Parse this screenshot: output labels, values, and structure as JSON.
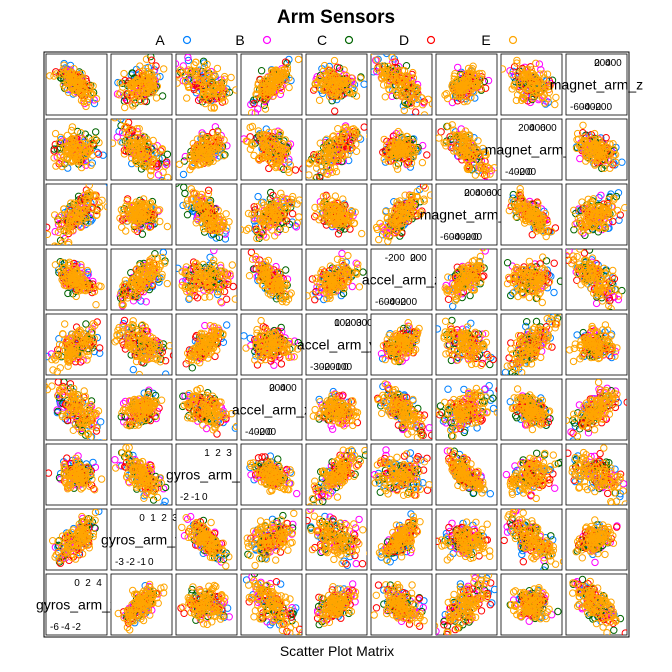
{
  "chart_data": {
    "type": "scatter",
    "subtype": "scatterplot-matrix",
    "title": "Arm Sensors",
    "xlabel": "Scatter Plot Matrix",
    "legend": {
      "placement": "top",
      "entries": [
        {
          "name": "A",
          "color": "#0080ff"
        },
        {
          "name": "B",
          "color": "#ff00ff"
        },
        {
          "name": "C",
          "color": "#006400"
        },
        {
          "name": "D",
          "color": "#ff0000"
        },
        {
          "name": "E",
          "color": "#ffa500"
        }
      ]
    },
    "variables": [
      {
        "label": "gyros_arm_x",
        "ticks": [
          "-6",
          "-4",
          "-2",
          "0",
          "2",
          "4"
        ],
        "range": [
          -6.5,
          4.5
        ]
      },
      {
        "label": "gyros_arm_y",
        "ticks": [
          "-3",
          "-2",
          "-1",
          "0",
          "1",
          "2",
          "3"
        ],
        "range": [
          -3.5,
          3.2
        ]
      },
      {
        "label": "gyros_arm_z",
        "ticks": [
          "-2",
          "-1",
          "0",
          "1",
          "2",
          "3"
        ],
        "range": [
          -2.6,
          3.2
        ]
      },
      {
        "label": "accel_arm_x",
        "ticks": [
          "-400",
          "-200",
          "0",
          "200",
          "400"
        ],
        "range": [
          -420,
          440
        ]
      },
      {
        "label": "accel_arm_y",
        "ticks": [
          "-300",
          "-200",
          "-100",
          "0",
          "100",
          "200",
          "300"
        ],
        "range": [
          -320,
          310
        ]
      },
      {
        "label": "accel_arm_z",
        "ticks": [
          "-600",
          "-400",
          "-200",
          "0",
          "200"
        ],
        "range": [
          -650,
          300
        ]
      },
      {
        "label": "magnet_arm_x",
        "ticks": [
          "-600",
          "-400",
          "-200",
          "0",
          "200",
          "400",
          "600"
        ],
        "range": [
          -600,
          800
        ]
      },
      {
        "label": "magnet_arm_y",
        "ticks": [
          "-400",
          "-200",
          "0",
          "200",
          "400",
          "600"
        ],
        "range": [
          -400,
          700
        ]
      },
      {
        "label": "magnet_arm_z",
        "ticks": [
          "-600",
          "-400",
          "-200",
          "0",
          "200",
          "400"
        ],
        "range": [
          -600,
          700
        ]
      }
    ],
    "grid": false
  }
}
